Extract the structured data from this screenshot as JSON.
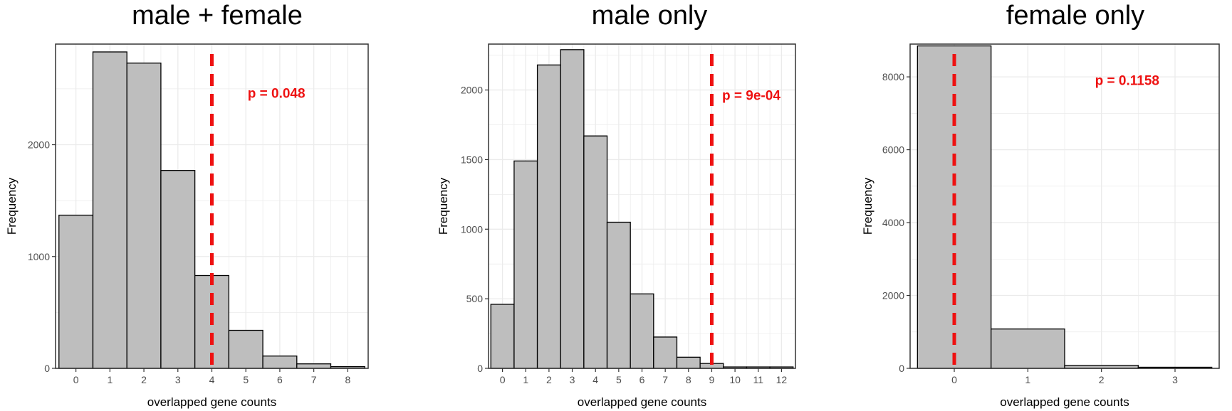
{
  "chart_data": [
    {
      "type": "bar",
      "title": "male + female",
      "xlabel": "overlapped gene counts",
      "ylabel": "Frequency",
      "categories": [
        "0",
        "1",
        "2",
        "3",
        "4",
        "5",
        "6",
        "7",
        "8"
      ],
      "values": [
        1370,
        2830,
        2730,
        1770,
        830,
        340,
        110,
        40,
        15
      ],
      "xlim": [
        -0.6,
        8.6
      ],
      "ylim": [
        0,
        2900
      ],
      "yticks": [
        0,
        1000,
        2000
      ],
      "reference_line": {
        "x": 4,
        "color": "#ee1111",
        "style": "dashed"
      },
      "annotation": {
        "text": "p = 0.048",
        "x": 5.9,
        "y": 2420,
        "color": "#ee1111"
      },
      "bar_fill": "#bebebe",
      "grid": true
    },
    {
      "type": "bar",
      "title": "male only",
      "xlabel": "overlapped gene counts",
      "ylabel": "Frequency",
      "categories": [
        "0",
        "1",
        "2",
        "3",
        "4",
        "5",
        "6",
        "7",
        "8",
        "9",
        "10",
        "11",
        "12"
      ],
      "values": [
        460,
        1490,
        2180,
        2290,
        1670,
        1050,
        535,
        225,
        80,
        35,
        10,
        10,
        10
      ],
      "xlim": [
        -0.6,
        12.6
      ],
      "ylim": [
        0,
        2330
      ],
      "yticks": [
        0,
        500,
        1000,
        1500,
        2000
      ],
      "reference_line": {
        "x": 9,
        "color": "#ee1111",
        "style": "dashed"
      },
      "annotation": {
        "text": "p = 9e-04",
        "x": 10.7,
        "y": 1930,
        "color": "#ee1111"
      },
      "bar_fill": "#bebebe",
      "grid": true
    },
    {
      "type": "bar",
      "title": "female only",
      "xlabel": "overlapped gene counts",
      "ylabel": "Frequency",
      "categories": [
        "0",
        "1",
        "2",
        "3"
      ],
      "values": [
        8850,
        1080,
        80,
        30
      ],
      "xlim": [
        -0.6,
        3.6
      ],
      "ylim": [
        0,
        8900
      ],
      "yticks": [
        0,
        2000,
        4000,
        6000,
        8000
      ],
      "reference_line": {
        "x": 0,
        "color": "#ee1111",
        "style": "dashed"
      },
      "annotation": {
        "text": "p = 0.1158",
        "x": 2.35,
        "y": 7780,
        "color": "#ee1111"
      },
      "bar_fill": "#bebebe",
      "grid": true
    }
  ]
}
